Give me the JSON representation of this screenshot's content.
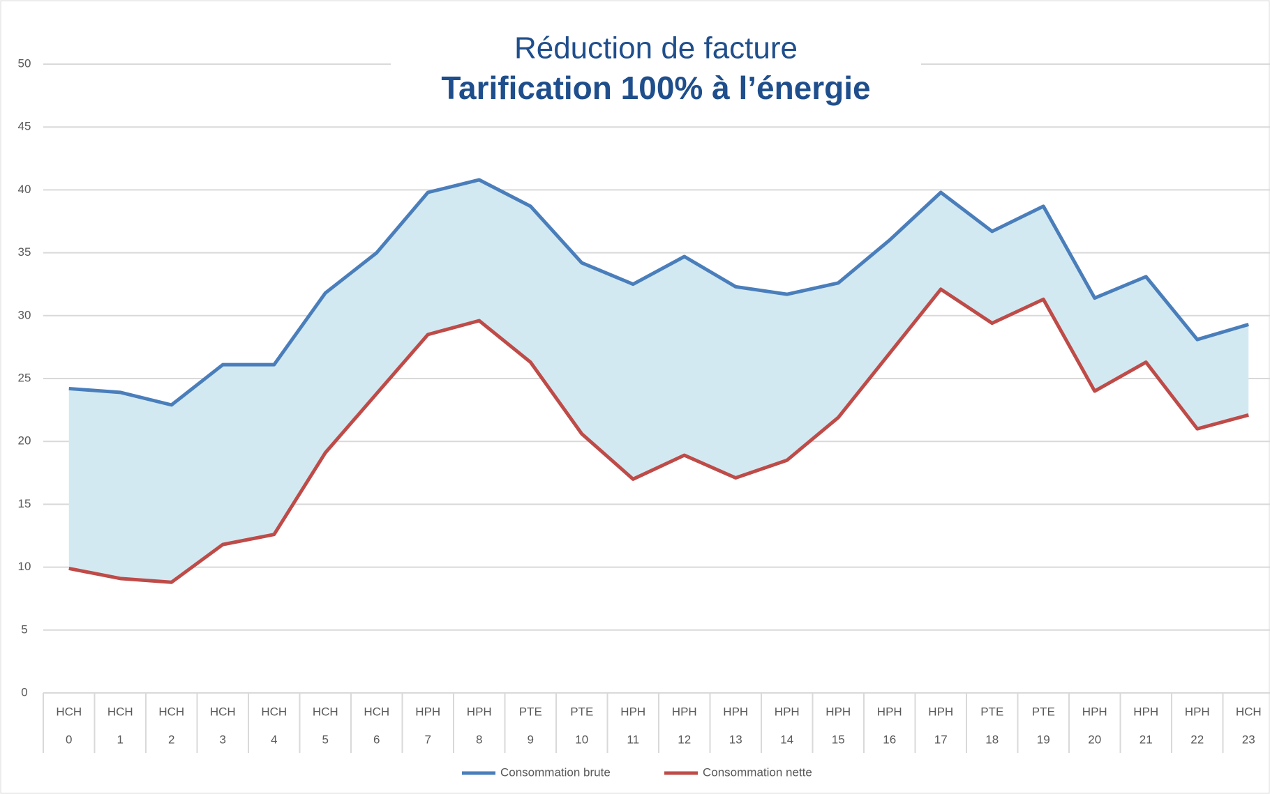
{
  "chart_data": {
    "type": "line",
    "title": "Réduction de facture",
    "subtitle": "Tarification 100% à l’énergie",
    "categories": [
      "HCH",
      "HCH",
      "HCH",
      "HCH",
      "HCH",
      "HCH",
      "HCH",
      "HPH",
      "HPH",
      "PTE",
      "PTE",
      "HPH",
      "HPH",
      "HPH",
      "HPH",
      "HPH",
      "HPH",
      "HPH",
      "PTE",
      "PTE",
      "HPH",
      "HPH",
      "HPH",
      "HCH"
    ],
    "x": [
      0,
      1,
      2,
      3,
      4,
      5,
      6,
      7,
      8,
      9,
      10,
      11,
      12,
      13,
      14,
      15,
      16,
      17,
      18,
      19,
      20,
      21,
      22,
      23
    ],
    "series": [
      {
        "name": "Consommation brute",
        "color": "#4a7ebb",
        "values": [
          24.2,
          23.9,
          22.9,
          26.1,
          26.1,
          31.8,
          35.0,
          39.8,
          40.8,
          38.7,
          34.2,
          32.5,
          34.7,
          32.3,
          31.7,
          32.6,
          36.0,
          39.8,
          36.7,
          38.7,
          31.4,
          33.1,
          28.1,
          29.3
        ]
      },
      {
        "name": "Consommation nette",
        "color": "#be4b48",
        "values": [
          9.9,
          9.1,
          8.8,
          11.8,
          12.6,
          19.1,
          23.8,
          28.5,
          29.6,
          26.3,
          20.6,
          17.0,
          18.9,
          17.1,
          18.5,
          21.9,
          27.0,
          32.1,
          29.4,
          31.3,
          24.0,
          26.3,
          21.0,
          22.1
        ]
      }
    ],
    "fill_between": true,
    "fill_color": "#d3e9f1",
    "ylim": [
      0,
      50
    ],
    "yticks": [
      0,
      5,
      10,
      15,
      20,
      25,
      30,
      35,
      40,
      45,
      50
    ],
    "grid": true,
    "legend": "bottom"
  }
}
